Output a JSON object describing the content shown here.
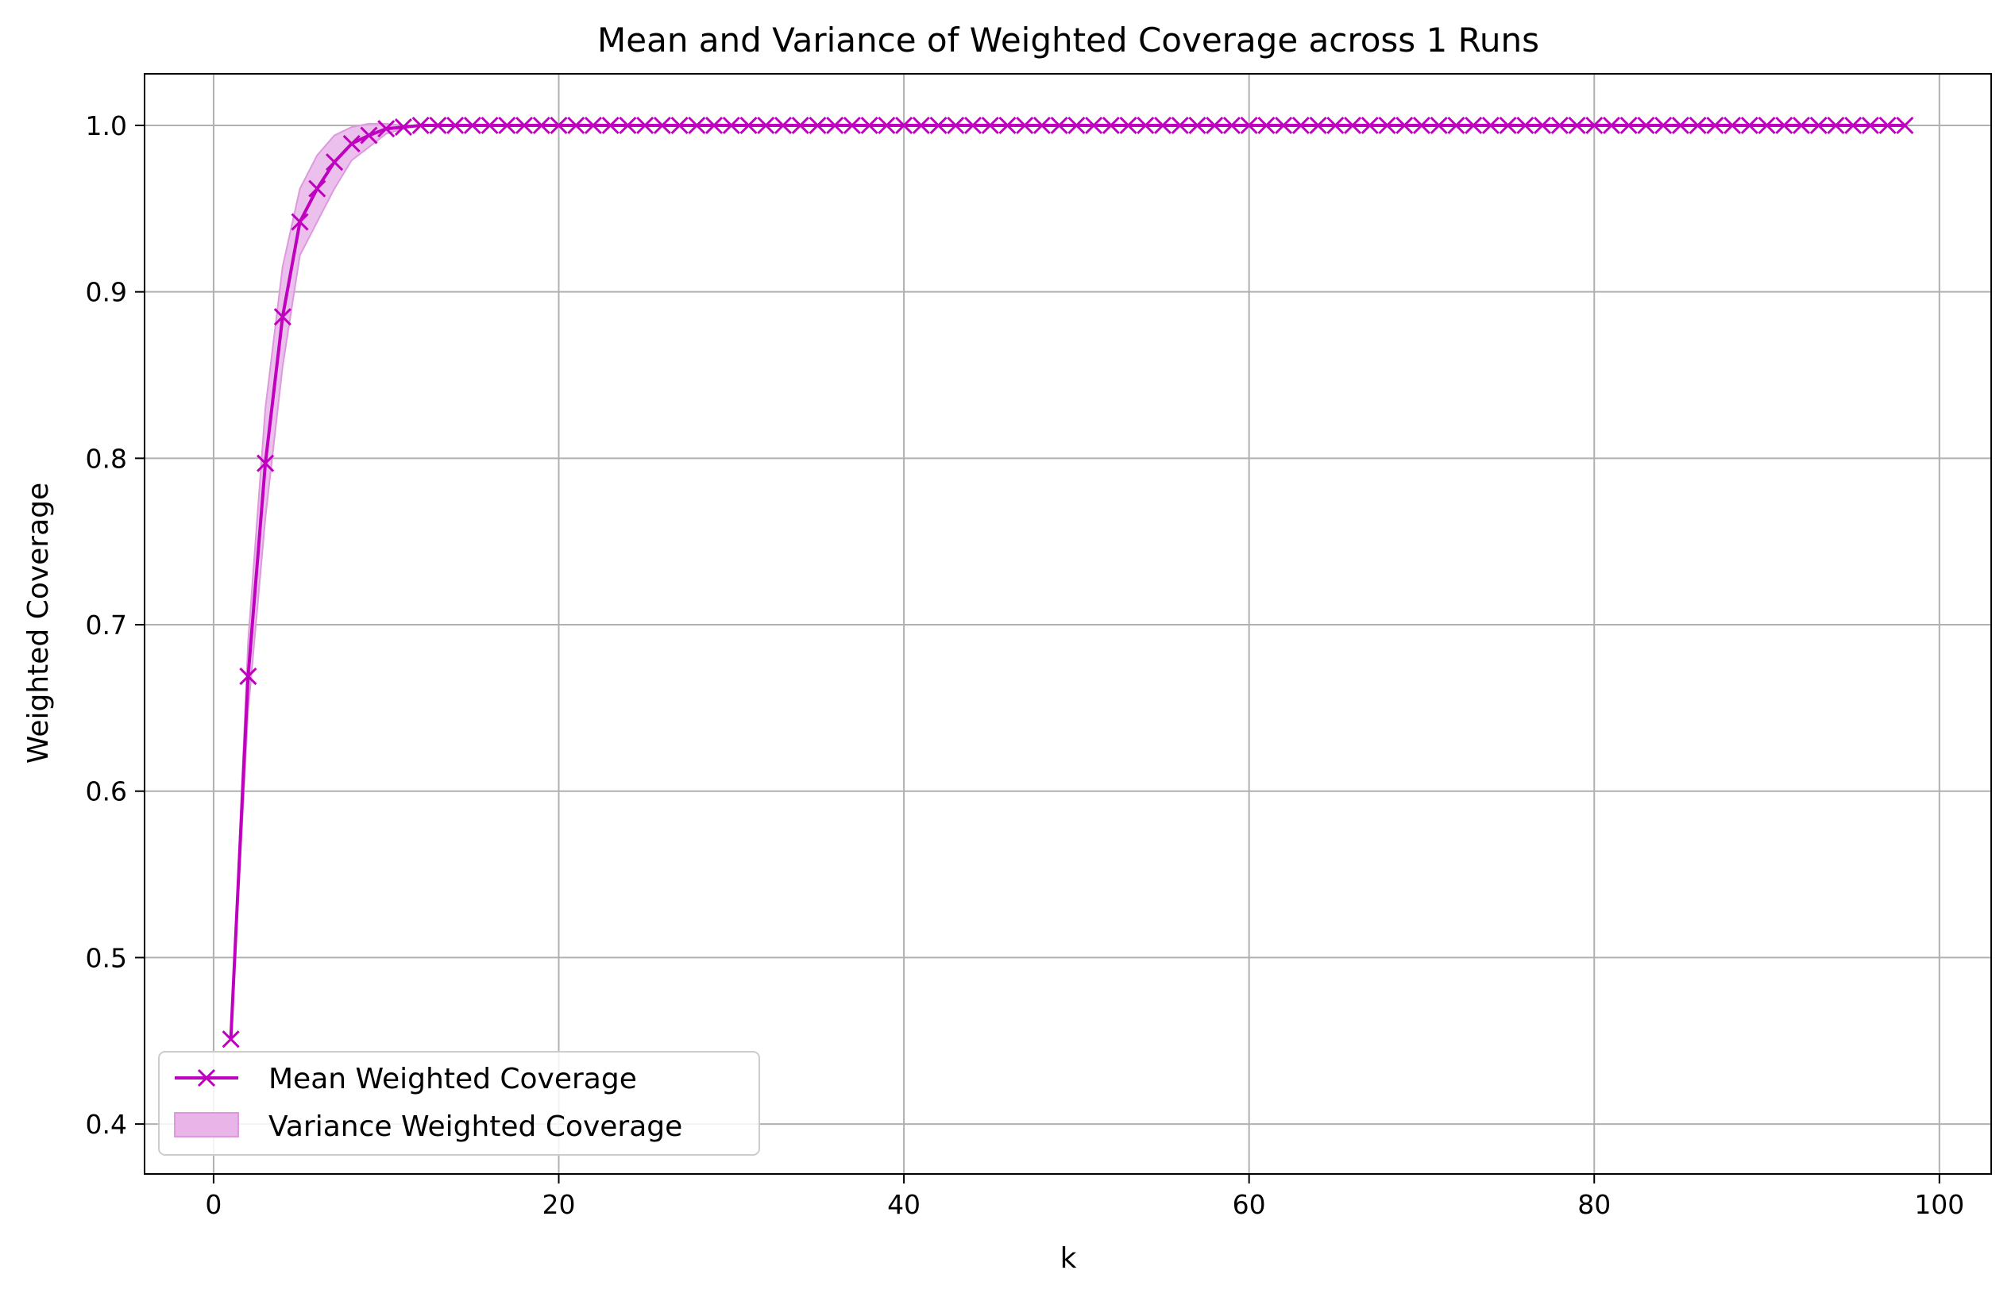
{
  "chart_data": {
    "type": "line",
    "title": "Mean and Variance of Weighted Coverage across 1 Runs",
    "xlabel": "k",
    "ylabel": "Weighted Coverage",
    "xlim": [
      -4,
      103
    ],
    "ylim": [
      0.37,
      1.031
    ],
    "xticks": [
      0,
      20,
      40,
      60,
      80,
      100
    ],
    "yticks": [
      0.4,
      0.5,
      0.6,
      0.7,
      0.8,
      0.9,
      1.0
    ],
    "xtick_labels": [
      "0",
      "20",
      "40",
      "60",
      "80",
      "100"
    ],
    "ytick_labels": [
      "0.4",
      "0.5",
      "0.6",
      "0.7",
      "0.8",
      "0.9",
      "1.0"
    ],
    "grid": true,
    "legend_position": "lower-left",
    "colors": {
      "line": "#bf00bf",
      "band": "#e9b5e9",
      "grid": "#b0b0b0"
    },
    "series": [
      {
        "name": "Mean Weighted Coverage",
        "x_start": 1,
        "x_end": 98,
        "marker": "x",
        "head_values": [
          0.451,
          0.669,
          0.797,
          0.885,
          0.942,
          0.962,
          0.978,
          0.989,
          0.994,
          0.998,
          0.999
        ],
        "tail_value": 1.0
      }
    ],
    "band": {
      "name": "Variance Weighted Coverage",
      "x": [
        1,
        2,
        3,
        4,
        5,
        6,
        7,
        8,
        9,
        10,
        11
      ],
      "upper": [
        0.451,
        0.69,
        0.83,
        0.915,
        0.962,
        0.982,
        0.994,
        0.999,
        1.001,
        1.001,
        1.0
      ],
      "lower": [
        0.451,
        0.648,
        0.764,
        0.855,
        0.922,
        0.942,
        0.962,
        0.979,
        0.987,
        0.995,
        0.998
      ]
    }
  }
}
